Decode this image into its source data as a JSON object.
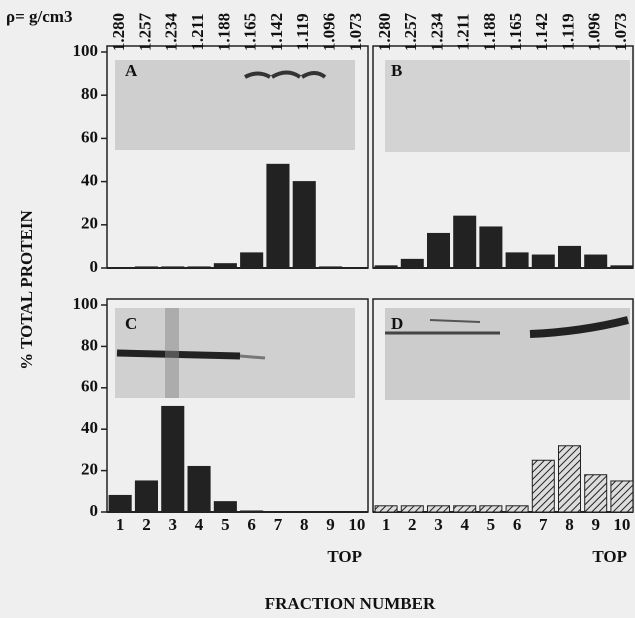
{
  "figure": {
    "density_label": "ρ= g/cm3",
    "ylabel": "% TOTAL PROTEIN",
    "xlabel": "FRACTION NUMBER"
  },
  "chart_data": [
    {
      "type": "bar",
      "label": "A",
      "categories": [
        "1.280",
        "1.257",
        "1.234",
        "1.211",
        "1.188",
        "1.165",
        "1.142",
        "1.119",
        "1.096",
        "1.073"
      ],
      "values": [
        0,
        0.5,
        0.5,
        0.5,
        2,
        7,
        48,
        40,
        0.5,
        0
      ],
      "color": "#222222",
      "ylim": [
        0,
        100
      ],
      "yticks": [
        0,
        20,
        40,
        60,
        80,
        100
      ]
    },
    {
      "type": "bar",
      "label": "B",
      "categories": [
        "1.280",
        "1.257",
        "1.234",
        "1.211",
        "1.188",
        "1.165",
        "1.142",
        "1.119",
        "1.096",
        "1.073"
      ],
      "values": [
        1,
        4,
        16,
        24,
        19,
        7,
        6,
        10,
        6,
        1
      ],
      "color": "#222222",
      "ylim": [
        0,
        100
      ]
    },
    {
      "type": "bar",
      "label": "C",
      "categories": [
        "1",
        "2",
        "3",
        "4",
        "5",
        "6",
        "7",
        "8",
        "9",
        "10"
      ],
      "x_end_label": "TOP",
      "values": [
        8,
        15,
        51,
        22,
        5,
        0.5,
        0,
        0,
        0,
        0
      ],
      "color": "#222222",
      "ylim": [
        0,
        100
      ],
      "yticks": [
        0,
        20,
        40,
        60,
        80,
        100
      ]
    },
    {
      "type": "bar",
      "label": "D",
      "categories": [
        "1",
        "2",
        "3",
        "4",
        "5",
        "6",
        "7",
        "8",
        "9",
        "10"
      ],
      "x_end_label": "TOP",
      "values": [
        3,
        3,
        3,
        3,
        3,
        3,
        25,
        32,
        18,
        15
      ],
      "color": "#222222",
      "hatch": true,
      "ylim": [
        0,
        100
      ]
    }
  ]
}
